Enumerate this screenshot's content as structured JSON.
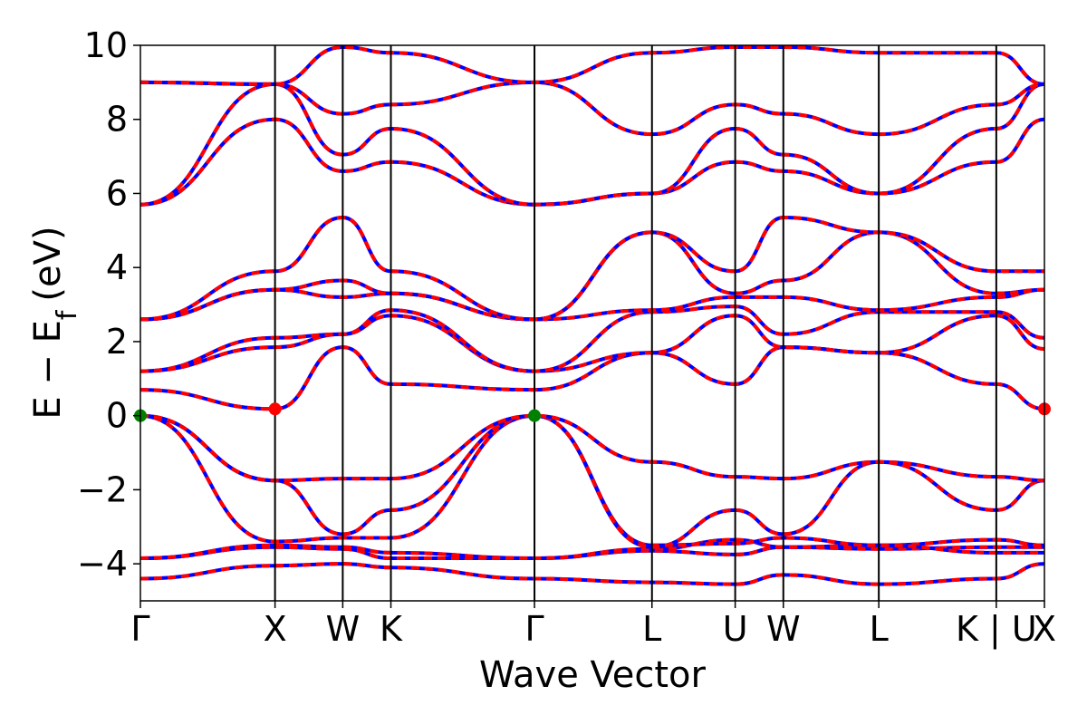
{
  "chart_data": {
    "type": "line",
    "xlabel": "Wave Vector",
    "ylabel": {
      "main": "E − E",
      "sub": "f",
      "unit": "(eV)"
    },
    "ylim": [
      -5,
      10
    ],
    "xlim": [
      0,
      11.7
    ],
    "yticks": [
      -4,
      -2,
      0,
      2,
      4,
      6,
      8,
      10
    ],
    "ytick_labels": [
      "−4",
      "−2",
      "0",
      "2",
      "4",
      "6",
      "8",
      "10"
    ],
    "kpoints": [
      {
        "label": "Γ",
        "x": 0.0
      },
      {
        "label": "X",
        "x": 3.3
      },
      {
        "label": "W",
        "x": 4.96
      },
      {
        "label": "K",
        "x": 6.14
      },
      {
        "label": "Γ",
        "x": 9.66
      },
      {
        "label": "L",
        "x": 12.54
      },
      {
        "label": "U",
        "x": 14.58
      },
      {
        "label": "W",
        "x": 15.76
      },
      {
        "label": "L",
        "x": 18.1
      },
      {
        "label": "K | U",
        "x": 20.98
      },
      {
        "label": "X",
        "x": 22.16
      }
    ],
    "x_max": 22.16,
    "grid": false,
    "colors": {
      "dashed_overlay": "#0000ff",
      "main_line": "#ff0000",
      "vbm_marker": "#008000",
      "cbm_marker": "#ff0000"
    },
    "extrema": [
      {
        "name": "VBM",
        "x": 0.0,
        "y": 0.0
      },
      {
        "name": "VBM",
        "x": 9.66,
        "y": 0.0
      },
      {
        "name": "CBM",
        "x": 3.3,
        "y": 0.18
      },
      {
        "name": "CBM",
        "x": 22.16,
        "y": 0.18
      }
    ],
    "bands": [
      {
        "name": "b1",
        "values": [
          -4.4,
          -4.05,
          -4.0,
          -4.1,
          -4.4,
          -4.5,
          -4.55,
          -4.3,
          -4.55,
          -4.4,
          -4.0
        ]
      },
      {
        "name": "b2",
        "values": [
          -3.85,
          -3.55,
          -3.6,
          -3.85,
          -3.85,
          -3.65,
          -3.75,
          -3.55,
          -3.6,
          -3.55,
          -3.55
        ]
      },
      {
        "name": "b3",
        "values": [
          -3.85,
          -3.5,
          -3.55,
          -3.7,
          -3.85,
          -3.6,
          -3.35,
          -3.55,
          -3.5,
          -3.35,
          -3.5
        ]
      },
      {
        "name": "b4",
        "values": [
          0.0,
          -3.4,
          -3.3,
          -3.3,
          0.0,
          -3.5,
          -3.45,
          -3.3,
          -3.5,
          -3.7,
          -3.7
        ]
      },
      {
        "name": "b5",
        "values": [
          0.0,
          -1.75,
          -3.2,
          -2.55,
          0.0,
          -3.55,
          -2.55,
          -3.2,
          -1.25,
          -2.55,
          -1.75
        ]
      },
      {
        "name": "b6",
        "values": [
          0.0,
          -1.75,
          -1.7,
          -1.7,
          0.0,
          -1.25,
          -1.65,
          -1.7,
          -1.25,
          -1.65,
          -1.75
        ]
      },
      {
        "name": "b7",
        "values": [
          0.7,
          0.18,
          1.85,
          0.85,
          0.7,
          1.7,
          0.85,
          1.85,
          1.7,
          0.85,
          0.18
        ]
      },
      {
        "name": "b8",
        "values": [
          1.2,
          1.85,
          2.2,
          2.7,
          1.2,
          1.7,
          2.7,
          1.85,
          1.7,
          2.7,
          1.8
        ]
      },
      {
        "name": "b9",
        "values": [
          1.2,
          2.1,
          2.2,
          2.85,
          1.2,
          2.8,
          2.95,
          2.2,
          2.8,
          2.8,
          2.1
        ]
      },
      {
        "name": "b10",
        "values": [
          2.6,
          3.4,
          3.2,
          3.3,
          2.6,
          2.85,
          3.2,
          3.2,
          2.85,
          3.2,
          3.4
        ]
      },
      {
        "name": "b11",
        "values": [
          2.6,
          3.4,
          3.65,
          3.3,
          2.6,
          4.95,
          3.3,
          3.65,
          4.95,
          3.3,
          3.4
        ]
      },
      {
        "name": "b12",
        "values": [
          2.6,
          3.9,
          5.35,
          3.9,
          2.6,
          4.95,
          3.9,
          5.35,
          4.95,
          3.9,
          3.9
        ]
      },
      {
        "name": "b13",
        "values": [
          5.7,
          8.0,
          6.6,
          6.85,
          5.7,
          6.0,
          6.85,
          6.6,
          6.0,
          6.85,
          8.0
        ]
      },
      {
        "name": "b14",
        "values": [
          5.7,
          8.95,
          7.05,
          7.75,
          5.7,
          6.0,
          7.75,
          7.05,
          6.0,
          7.75,
          8.95
        ]
      },
      {
        "name": "b15",
        "values": [
          9.0,
          8.95,
          8.15,
          8.4,
          9.0,
          7.6,
          8.4,
          8.15,
          7.6,
          8.4,
          8.95
        ]
      },
      {
        "name": "b16",
        "values": [
          9.0,
          8.95,
          9.95,
          9.8,
          9.0,
          9.8,
          9.95,
          9.95,
          9.8,
          9.8,
          8.95
        ]
      }
    ]
  }
}
